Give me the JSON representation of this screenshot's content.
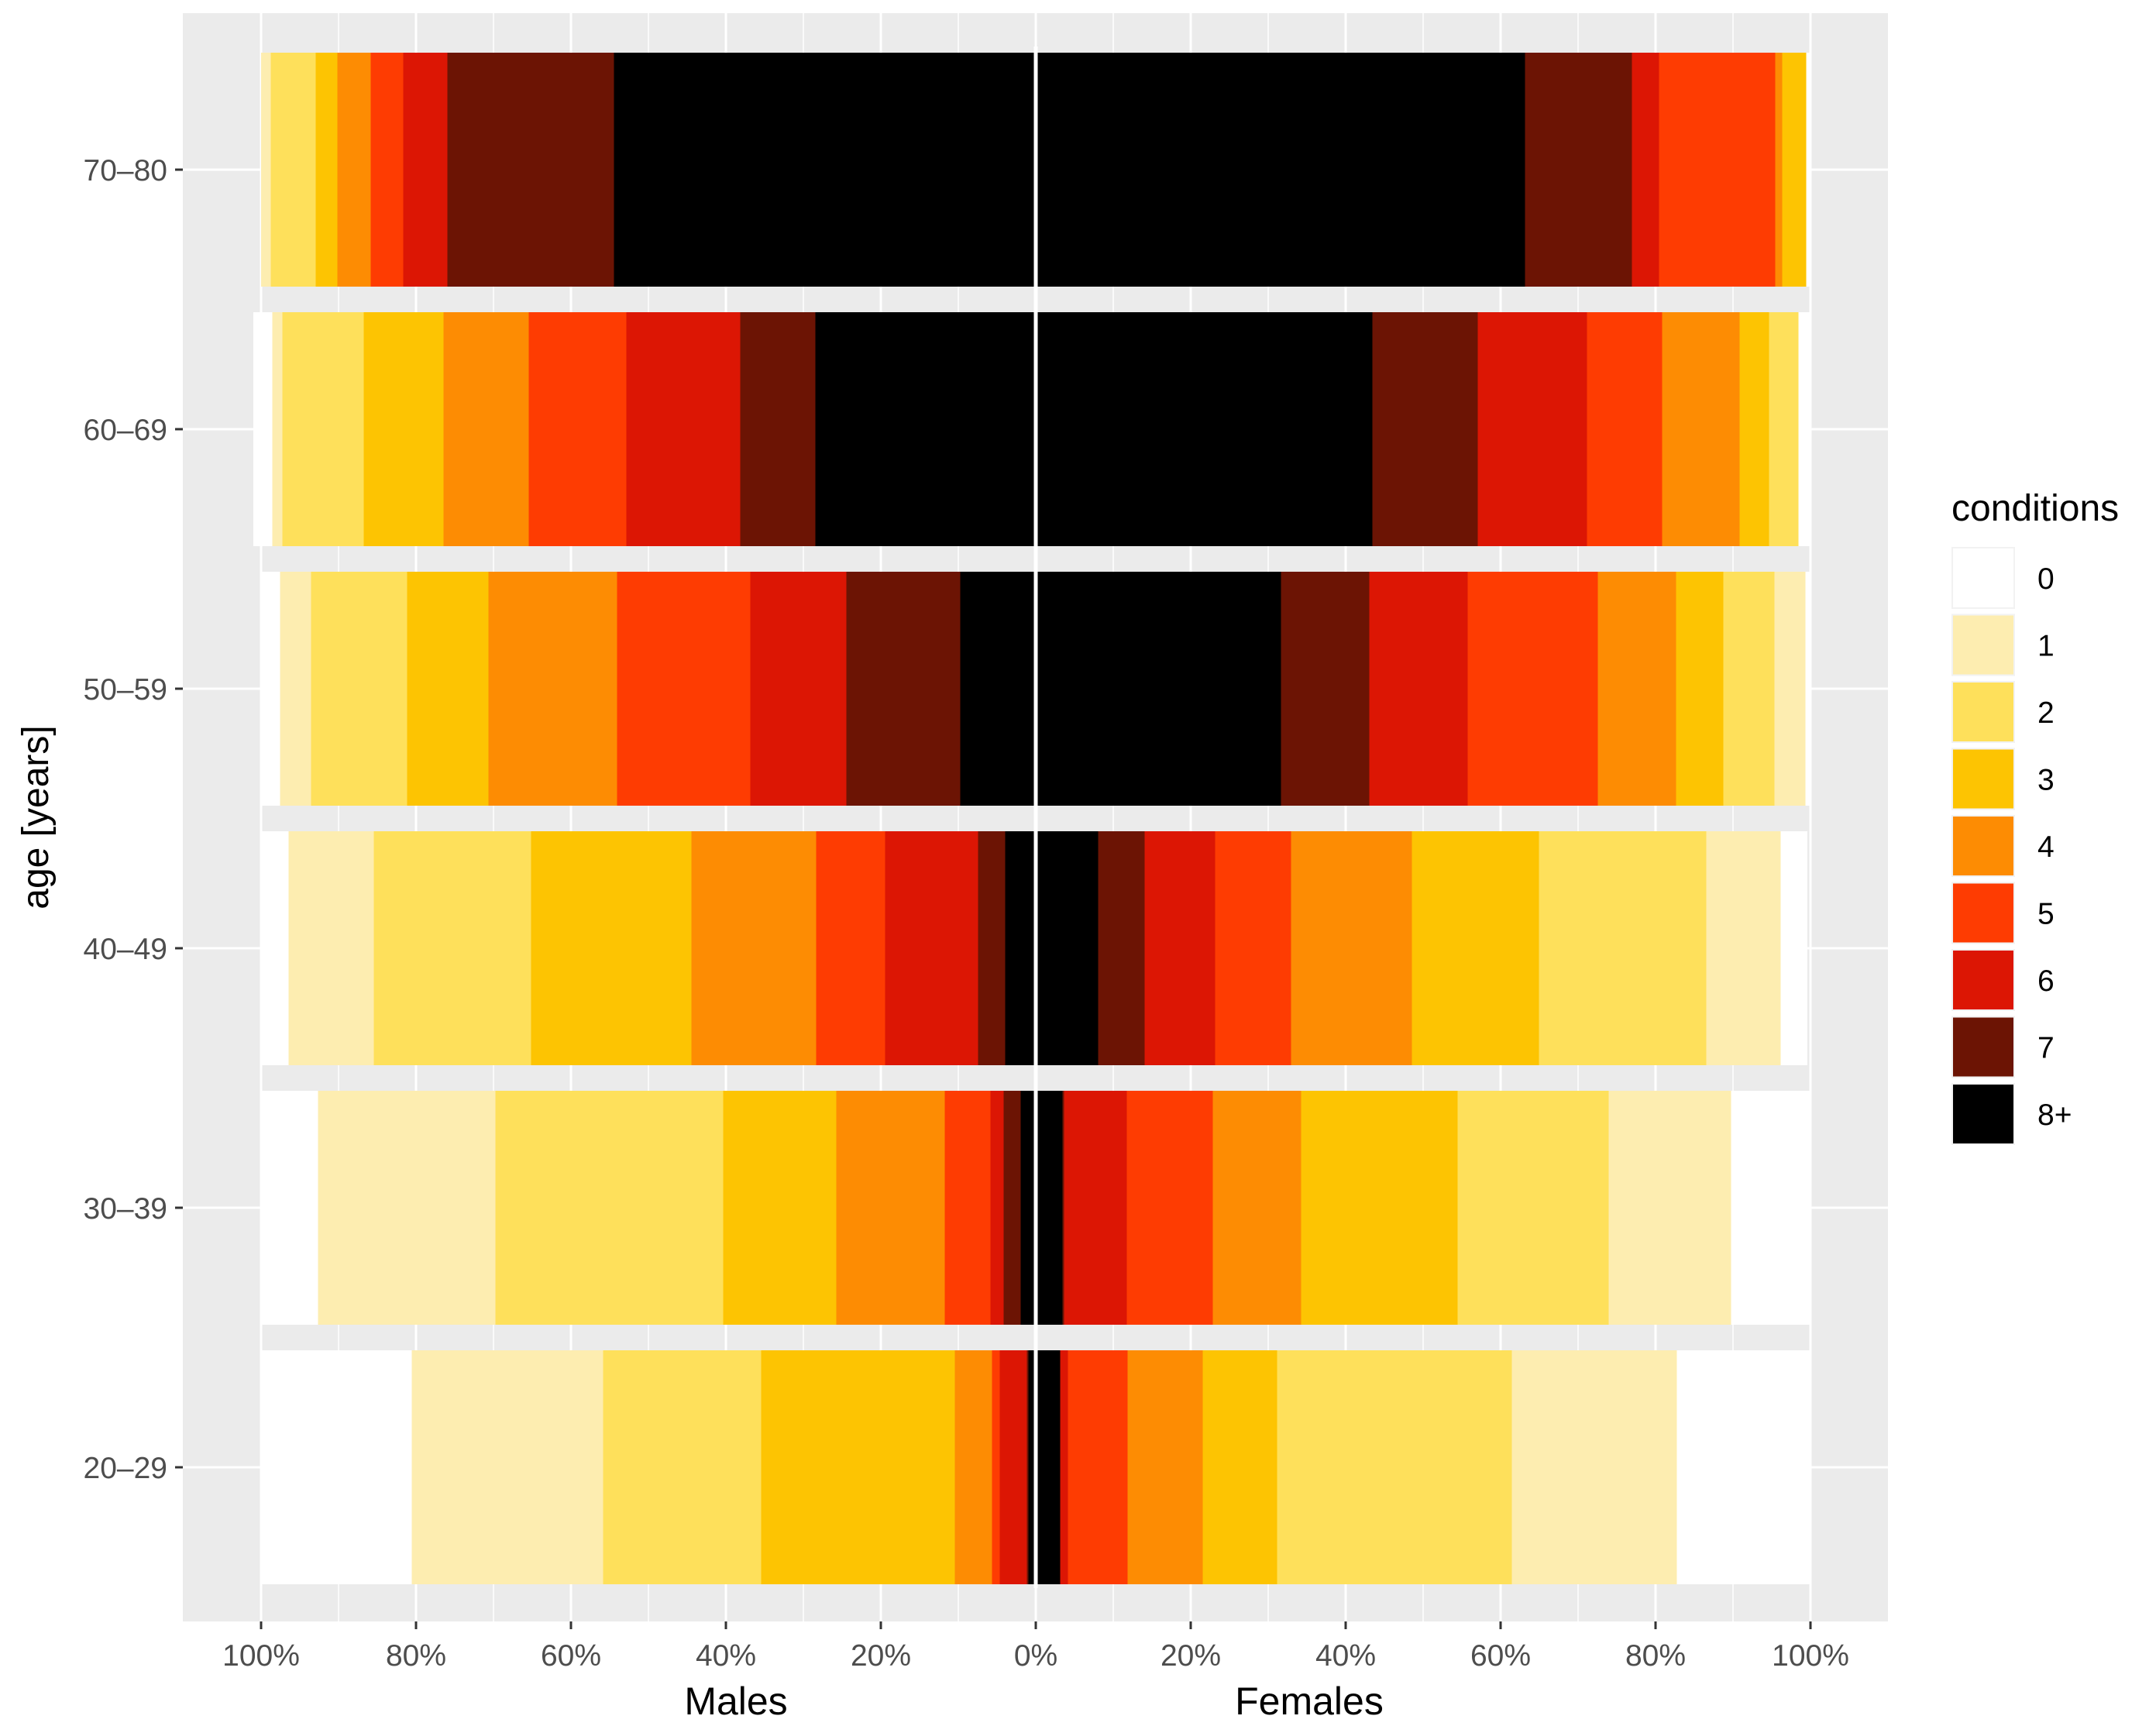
{
  "chart_data": {
    "type": "bar",
    "orientation": "horizontal",
    "stacked": "percent",
    "layout": "population-pyramid",
    "title": "",
    "ylabel": "age [years]",
    "xlabel_left": "Males",
    "xlabel_right": "Females",
    "categories": [
      "70–80",
      "60–69",
      "50–59",
      "40–49",
      "30–39",
      "20–29"
    ],
    "x_ticks": [
      "100%",
      "80%",
      "60%",
      "40%",
      "20%",
      "0%",
      "20%",
      "40%",
      "60%",
      "80%",
      "100%"
    ],
    "xlim": [
      -100,
      100
    ],
    "grid": true,
    "legend": {
      "title": "conditions",
      "position": "right",
      "entries": [
        "0",
        "1",
        "2",
        "3",
        "4",
        "5",
        "6",
        "7",
        "8+"
      ]
    },
    "colors": {
      "0": "#ffffff",
      "1": "#fdedb0",
      "2": "#fee05b",
      "3": "#fdc402",
      "4": "#fd8c03",
      "5": "#fe3c02",
      "6": "#dc1604",
      "7": "#6c1404",
      "8+": "#000000",
      "panel_background": "#ebebeb",
      "grid_line": "#ffffff",
      "axis_text": "#4d4d4d",
      "axis_title": "#000000"
    },
    "series": [
      {
        "name": "8+",
        "males": [
          54.5,
          28.5,
          9.8,
          4.0,
          2.0,
          1.0
        ],
        "females": [
          63.2,
          43.5,
          31.7,
          8.1,
          3.5,
          3.2
        ]
      },
      {
        "name": "7",
        "males": [
          21.5,
          9.7,
          14.7,
          3.5,
          2.2,
          0.2
        ],
        "females": [
          13.8,
          13.6,
          11.4,
          6.0,
          0.2,
          0.0
        ]
      },
      {
        "name": "6",
        "males": [
          5.7,
          14.7,
          12.4,
          12.0,
          1.7,
          3.5
        ],
        "females": [
          3.5,
          14.1,
          12.7,
          9.1,
          8.1,
          1.0
        ]
      },
      {
        "name": "5",
        "males": [
          4.2,
          12.6,
          17.2,
          8.9,
          5.9,
          1.0
        ],
        "females": [
          15.0,
          9.7,
          16.8,
          9.8,
          11.1,
          7.7
        ]
      },
      {
        "name": "4",
        "males": [
          4.3,
          11.0,
          16.6,
          16.1,
          14.0,
          4.8
        ],
        "females": [
          0.9,
          10.0,
          10.1,
          15.6,
          11.4,
          9.7
        ]
      },
      {
        "name": "3",
        "males": [
          2.8,
          10.3,
          10.5,
          20.7,
          14.6,
          25.0
        ],
        "females": [
          3.1,
          3.8,
          6.1,
          16.4,
          20.2,
          9.6
        ]
      },
      {
        "name": "2",
        "males": [
          5.8,
          10.5,
          12.4,
          20.3,
          29.4,
          20.4
        ],
        "females": [
          0.0,
          3.8,
          6.6,
          21.6,
          19.5,
          30.3
        ]
      },
      {
        "name": "1",
        "males": [
          1.2,
          1.3,
          4.0,
          11.0,
          22.9,
          24.7
        ],
        "females": [
          0.0,
          0.0,
          4.0,
          9.6,
          15.8,
          21.3
        ]
      },
      {
        "name": "0",
        "males": [
          0.0,
          2.4,
          2.4,
          3.5,
          7.3,
          19.4
        ],
        "females": [
          0.5,
          1.5,
          0.6,
          3.4,
          10.2,
          17.2
        ]
      }
    ]
  }
}
